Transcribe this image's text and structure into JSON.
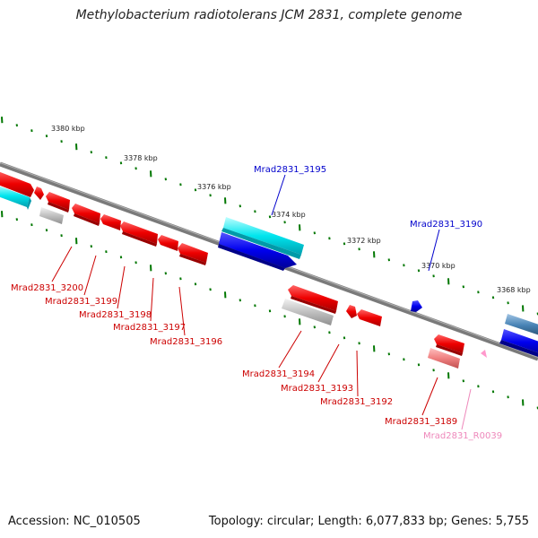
{
  "title": "Methylobacterium radiotolerans JCM 2831, complete genome",
  "footer": {
    "accession": "Accession: NC_010505",
    "summary": "Topology: circular; Length: 6,077,833 bp; Genes: 5,755"
  },
  "colors": {
    "cds_forward": "#00e5ee",
    "cds_forward_dark": "#0000ee",
    "cds_reverse": "#ee0000",
    "pseudo": "#bbbbbb",
    "rna": "#ff99cc",
    "steelblue": "#4682b4",
    "tick": "#007700",
    "backbone": "#777777",
    "label_blue": "#0000cc",
    "label_red": "#cc0000",
    "label_pink": "#ee88bb"
  },
  "ruler_labels": [
    "3380 kbp",
    "3378 kbp",
    "3376 kbp",
    "3374 kbp",
    "3372 kbp",
    "3370 kbp",
    "3368 kbp"
  ],
  "gene_labels": [
    {
      "text": "Mrad2831_3195",
      "color": "blue"
    },
    {
      "text": "Mrad2831_3190",
      "color": "blue"
    },
    {
      "text": "Mrad2831_3200",
      "color": "red"
    },
    {
      "text": "Mrad2831_3199",
      "color": "red"
    },
    {
      "text": "Mrad2831_3198",
      "color": "red"
    },
    {
      "text": "Mrad2831_3197",
      "color": "red"
    },
    {
      "text": "Mrad2831_3196",
      "color": "red"
    },
    {
      "text": "Mrad2831_3194",
      "color": "red"
    },
    {
      "text": "Mrad2831_3193",
      "color": "red"
    },
    {
      "text": "Mrad2831_3192",
      "color": "red"
    },
    {
      "text": "Mrad2831_3189",
      "color": "red"
    },
    {
      "text": "Mrad2831_R0039",
      "color": "pink"
    }
  ]
}
